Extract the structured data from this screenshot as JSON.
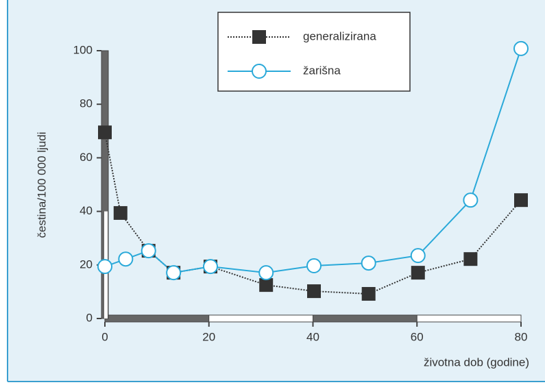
{
  "chart_data": {
    "type": "line",
    "xlabel": "životna dob (godine)",
    "ylabel": "čestina/100 000 ljudi",
    "xlim": [
      0,
      80
    ],
    "ylim": [
      0,
      100
    ],
    "xticks": [
      0,
      20,
      40,
      60,
      80
    ],
    "yticks": [
      0,
      20,
      40,
      60,
      80,
      100
    ],
    "legend": "top",
    "series": [
      {
        "name": "generalizirana",
        "color": "#333333",
        "marker": "square",
        "dash": "dotted",
        "x": [
          0,
          3,
          8.4,
          13.2,
          20.3,
          31,
          40.2,
          50.7,
          60.2,
          70.3,
          80
        ],
        "values": [
          69.5,
          39.4,
          25.3,
          17.1,
          19.4,
          12.5,
          10.2,
          9.2,
          17.1,
          22.2,
          44.2
        ]
      },
      {
        "name": "žarišna",
        "color": "#2aa9d9",
        "marker": "circle",
        "dash": "solid",
        "x": [
          0,
          4,
          8.4,
          13.2,
          20.3,
          31,
          40.2,
          50.7,
          60.2,
          70.3,
          80
        ],
        "values": [
          19.4,
          22.2,
          25.3,
          17.1,
          19.4,
          17.1,
          19.7,
          20.7,
          23.5,
          44.2,
          100.8
        ]
      }
    ]
  }
}
